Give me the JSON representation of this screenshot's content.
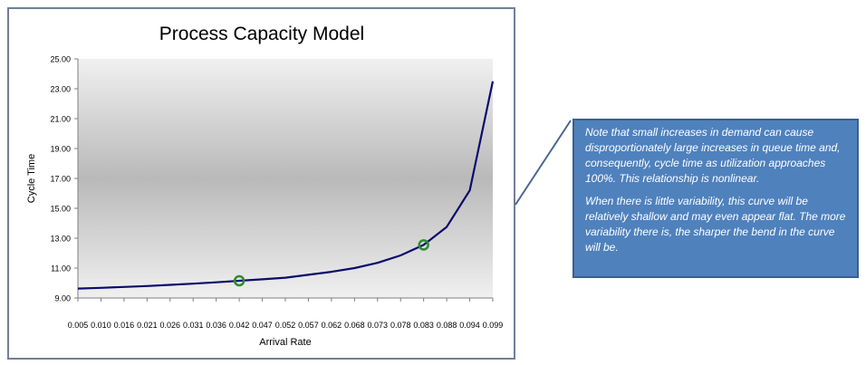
{
  "chart_data": {
    "type": "line",
    "title": "Process Capacity Model",
    "xlabel": "Arrival Rate",
    "ylabel": "Cycle Time",
    "categories": [
      "0.005",
      "0.010",
      "0.016",
      "0.021",
      "0.026",
      "0.031",
      "0.036",
      "0.042",
      "0.047",
      "0.052",
      "0.057",
      "0.062",
      "0.068",
      "0.073",
      "0.078",
      "0.083",
      "0.088",
      "0.094",
      "0.099"
    ],
    "values": [
      9.63,
      9.68,
      9.74,
      9.8,
      9.88,
      9.96,
      10.05,
      10.15,
      10.25,
      10.36,
      10.55,
      10.75,
      11.0,
      11.35,
      11.85,
      12.55,
      13.75,
      16.2,
      23.5
    ],
    "highlighted_points": [
      7,
      15
    ],
    "ylim": [
      9.0,
      25.0
    ],
    "yticks": [
      "9.00",
      "11.00",
      "13.00",
      "15.00",
      "17.00",
      "19.00",
      "21.00",
      "23.00",
      "25.00"
    ],
    "legend": "none",
    "grid": false,
    "line_color": "#0b0b6e",
    "marker_color": "#2e8b2e",
    "plot_bg_top": "#f0f0f0",
    "plot_bg_mid": "#b9b9b9"
  },
  "callout": {
    "paragraph1": "Note that small increases in demand can cause disproportionately large increases in queue time and, consequently, cycle time as utilization approaches 100%.  This relationship is nonlinear.",
    "paragraph2": "When there is little variability, this curve will be relatively shallow and may even appear flat.  The more variability there is, the sharper the bend in the curve will be."
  }
}
